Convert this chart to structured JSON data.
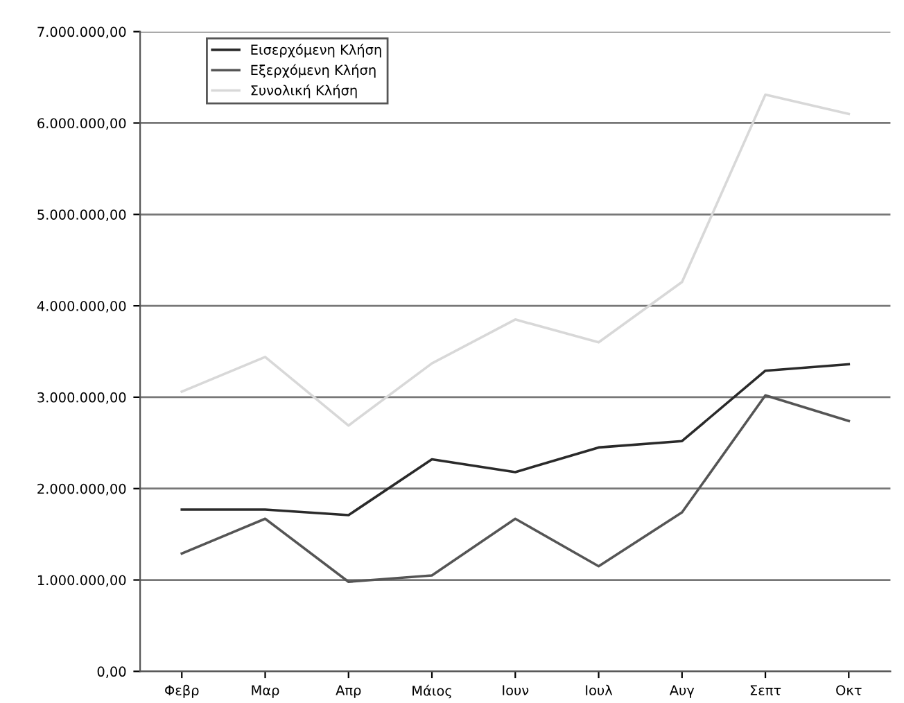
{
  "chart_data": {
    "type": "line",
    "categories": [
      "Φεβρ",
      "Μαρ",
      "Απρ",
      "Μάιος",
      "Ιουν",
      "Ιουλ",
      "Αυγ",
      "Σεπτ",
      "Οκτ"
    ],
    "series": [
      {
        "name": "Εισερχόμενη Κλήση",
        "color": "#2a2a2a",
        "values": [
          1770000,
          1770000,
          1710000,
          2320000,
          2180000,
          2450000,
          2520000,
          3290000,
          3360000
        ]
      },
      {
        "name": "Εξερχόμενη Κλήση",
        "color": "#555555",
        "values": [
          1290000,
          1670000,
          980000,
          1050000,
          1670000,
          1150000,
          1740000,
          3020000,
          2740000
        ]
      },
      {
        "name": "Συνολική Κλήση",
        "color": "#d8d8d8",
        "values": [
          3060000,
          3440000,
          2690000,
          3370000,
          3850000,
          3600000,
          4260000,
          6310000,
          6100000
        ]
      }
    ],
    "ylim": [
      0,
      7000000
    ],
    "yticks": [
      {
        "value": 0,
        "label": "0,00"
      },
      {
        "value": 1000000,
        "label": "1.000.000,00"
      },
      {
        "value": 2000000,
        "label": "2.000.000,00"
      },
      {
        "value": 3000000,
        "label": "3.000.000,00"
      },
      {
        "value": 4000000,
        "label": "4.000.000,00"
      },
      {
        "value": 5000000,
        "label": "5.000.000,00"
      },
      {
        "value": 6000000,
        "label": "6.000.000,00"
      },
      {
        "value": 7000000,
        "label": "7.000.000,00"
      }
    ],
    "grid": "y",
    "legend": "top left",
    "marker": "none",
    "line_style": "solid"
  }
}
